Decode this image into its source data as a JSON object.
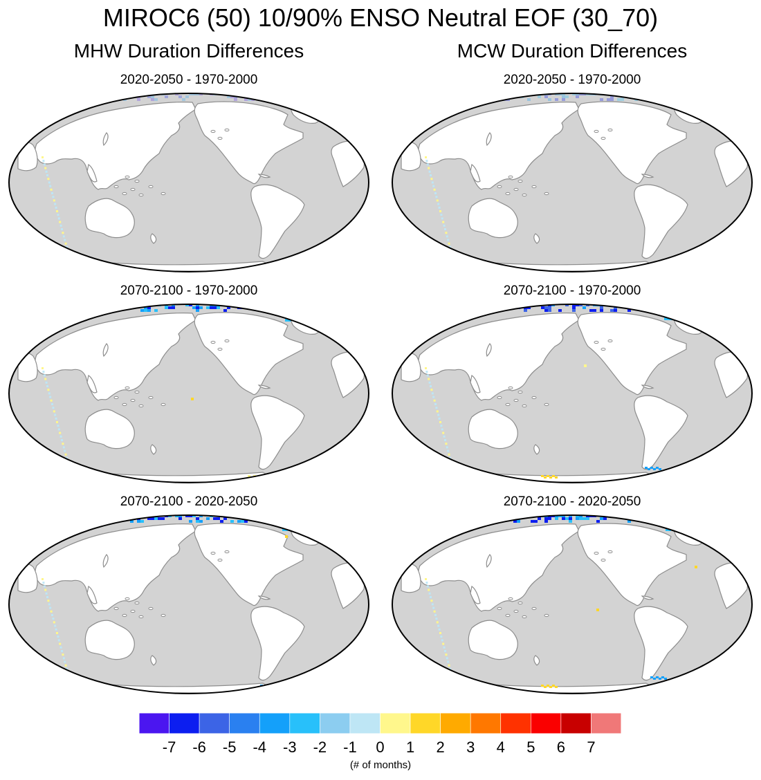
{
  "title": "MIROC6 (50) 10/90% ENSO Neutral EOF (30_70)",
  "columns": [
    {
      "title": "MHW Duration Differences"
    },
    {
      "title": "MCW Duration Differences"
    }
  ],
  "panels": [
    {
      "title": "2020-2050 - 1970-2000"
    },
    {
      "title": "2020-2050 - 1970-2000"
    },
    {
      "title": "2070-2100 - 1970-2000"
    },
    {
      "title": "2070-2100 - 1970-2000"
    },
    {
      "title": "2070-2100 - 2020-2050"
    },
    {
      "title": "2070-2100 - 2020-2050"
    }
  ],
  "colors": {
    "ocean": "#d3d3d3",
    "land": "#ffffff",
    "coast": "#8c8c8c",
    "border": "#000000"
  },
  "colorbar": {
    "levels": [
      -7,
      -6,
      -5,
      -4,
      -3,
      -2,
      -1,
      0,
      1,
      2,
      3,
      4,
      5,
      6,
      7
    ],
    "colors": [
      "#4b16f0",
      "#0c1ef0",
      "#3c64e6",
      "#2a80f0",
      "#14a0fa",
      "#28c0fa",
      "#8ccdf0",
      "#bee6f5",
      "#fff78c",
      "#ffd728",
      "#ffaa00",
      "#ff7800",
      "#ff3200",
      "#fa0000",
      "#c80000",
      "#f07878"
    ],
    "tick_labels": [
      "-7",
      "-6",
      "-5",
      "-4",
      "-3",
      "-2",
      "-1",
      "0",
      "1",
      "2",
      "3",
      "4",
      "5",
      "6",
      "7"
    ],
    "units": "(# of months)"
  }
}
